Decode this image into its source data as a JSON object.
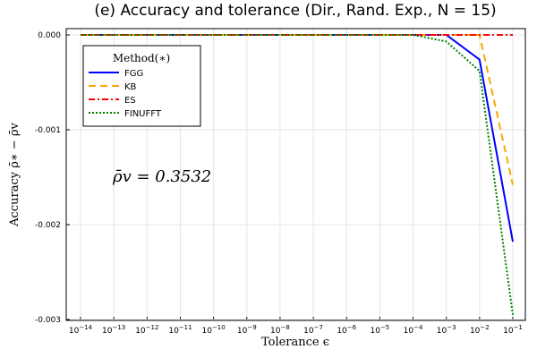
{
  "chart_data": {
    "type": "line",
    "title": "(e) Accuracy and tolerance (Dir., Rand. Exp., N = 15)",
    "xlabel": "Tolerance ϵ",
    "ylabel": "Accuracy ρ̄∗ − ρ̄v",
    "x_scale": "log",
    "x_exponents": [
      -14,
      -13,
      -12,
      -11,
      -10,
      -9,
      -8,
      -7,
      -6,
      -5,
      -4,
      -3,
      -2,
      -1
    ],
    "x_tick_labels": [
      "10−14",
      "10−13",
      "10−12",
      "10−11",
      "10−10",
      "10−9",
      "10−8",
      "10−7",
      "10−6",
      "10−5",
      "10−4",
      "10−3",
      "10−2",
      "10−1"
    ],
    "ylim": [
      -0.003,
      0.0
    ],
    "y_ticks": [
      0.0,
      -0.001,
      -0.002,
      -0.003
    ],
    "y_tick_labels": [
      "0.000",
      "-0.001",
      "-0.002",
      "-0.003"
    ],
    "grid": true,
    "legend": {
      "title": "Method(∗)",
      "placement": "top-left"
    },
    "annotation": "ρ̄v = 0.3532",
    "series": [
      {
        "name": "FGG",
        "color": "#0000ff",
        "dash": "solid",
        "x": [
          -14,
          -13,
          -12,
          -11,
          -10,
          -9,
          -8,
          -7,
          -6,
          -5,
          -4,
          -3,
          -2,
          -1
        ],
        "y": [
          0,
          0,
          0,
          0,
          0,
          0,
          0,
          0,
          0,
          0,
          0,
          0,
          -0.00026,
          -0.00218
        ]
      },
      {
        "name": "KB",
        "color": "#ffa500",
        "dash": "dashed",
        "x": [
          -14,
          -13,
          -12,
          -11,
          -10,
          -9,
          -8,
          -7,
          -6,
          -5,
          -4,
          -3,
          -2,
          -1
        ],
        "y": [
          0,
          0,
          0,
          0,
          0,
          0,
          0,
          0,
          0,
          0,
          0,
          0,
          0,
          -0.00158
        ]
      },
      {
        "name": "ES",
        "color": "#ff0000",
        "dash": "dashdot",
        "x": [
          -14,
          -13,
          -12,
          -11,
          -10,
          -9,
          -8,
          -7,
          -6,
          -5,
          -4,
          -3,
          -2,
          -1
        ],
        "y": [
          0,
          0,
          0,
          0,
          0,
          0,
          0,
          0,
          0,
          0,
          0,
          0,
          0,
          0
        ]
      },
      {
        "name": "FINUFFT",
        "color": "#008000",
        "dash": "dotted",
        "x": [
          -14,
          -13,
          -12,
          -11,
          -10,
          -9,
          -8,
          -7,
          -6,
          -5,
          -4,
          -3,
          -2,
          -1
        ],
        "y": [
          0,
          0,
          0,
          0,
          0,
          0,
          0,
          0,
          0,
          0,
          0,
          -7e-05,
          -0.00038,
          -0.00295
        ]
      }
    ]
  }
}
